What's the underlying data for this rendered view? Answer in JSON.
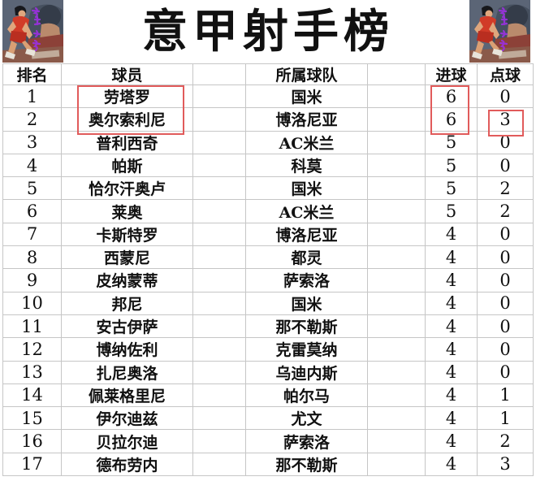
{
  "title": "意甲射手榜",
  "header": {
    "rank": "排名",
    "player": "球员",
    "team": "所属球队",
    "goals": "进球",
    "penalties": "点球"
  },
  "rows": [
    {
      "rank": "1",
      "player": "劳塔罗",
      "team": "国米",
      "goals": "6",
      "penalties": "0"
    },
    {
      "rank": "2",
      "player": "奥尔索利尼",
      "team": "博洛尼亚",
      "goals": "6",
      "penalties": "3"
    },
    {
      "rank": "3",
      "player": "普利西奇",
      "team": "AC米兰",
      "goals": "5",
      "penalties": "0"
    },
    {
      "rank": "4",
      "player": "帕斯",
      "team": "科莫",
      "goals": "5",
      "penalties": "0"
    },
    {
      "rank": "5",
      "player": "恰尔汗奥卢",
      "team": "国米",
      "goals": "5",
      "penalties": "2"
    },
    {
      "rank": "6",
      "player": "莱奥",
      "team": "AC米兰",
      "goals": "5",
      "penalties": "2"
    },
    {
      "rank": "7",
      "player": "卡斯特罗",
      "team": "博洛尼亚",
      "goals": "4",
      "penalties": "0"
    },
    {
      "rank": "8",
      "player": "西蒙尼",
      "team": "都灵",
      "goals": "4",
      "penalties": "0"
    },
    {
      "rank": "9",
      "player": "皮纳蒙蒂",
      "team": "萨索洛",
      "goals": "4",
      "penalties": "0"
    },
    {
      "rank": "10",
      "player": "邦尼",
      "team": "国米",
      "goals": "4",
      "penalties": "0"
    },
    {
      "rank": "11",
      "player": "安古伊萨",
      "team": "那不勒斯",
      "goals": "4",
      "penalties": "0"
    },
    {
      "rank": "12",
      "player": "博纳佐利",
      "team": "克雷莫纳",
      "goals": "4",
      "penalties": "0"
    },
    {
      "rank": "13",
      "player": "扎尼奥洛",
      "team": "乌迪内斯",
      "goals": "4",
      "penalties": "0"
    },
    {
      "rank": "14",
      "player": "佩莱格里尼",
      "team": "帕尔马",
      "goals": "4",
      "penalties": "1"
    },
    {
      "rank": "15",
      "player": "伊尔迪兹",
      "team": "尤文",
      "goals": "4",
      "penalties": "1"
    },
    {
      "rank": "16",
      "player": "贝拉尔迪",
      "team": "萨索洛",
      "goals": "4",
      "penalties": "2"
    },
    {
      "rank": "17",
      "player": "德布劳内",
      "team": "那不勒斯",
      "goals": "4",
      "penalties": "3"
    }
  ],
  "highlights": {
    "box_color": "#e15b5b",
    "players_box_rows": "1-2",
    "goals_box_rows": "1-2",
    "penalty_box_row": "2"
  },
  "corner_image": {
    "name": "basketball-player-artwork",
    "watermark_color": "#9b30e0",
    "background": "#5b6576",
    "jersey_color": "#d13b28"
  },
  "colors": {
    "gridline": "#c6c6c6",
    "text": "#111111",
    "background": "#ffffff"
  }
}
